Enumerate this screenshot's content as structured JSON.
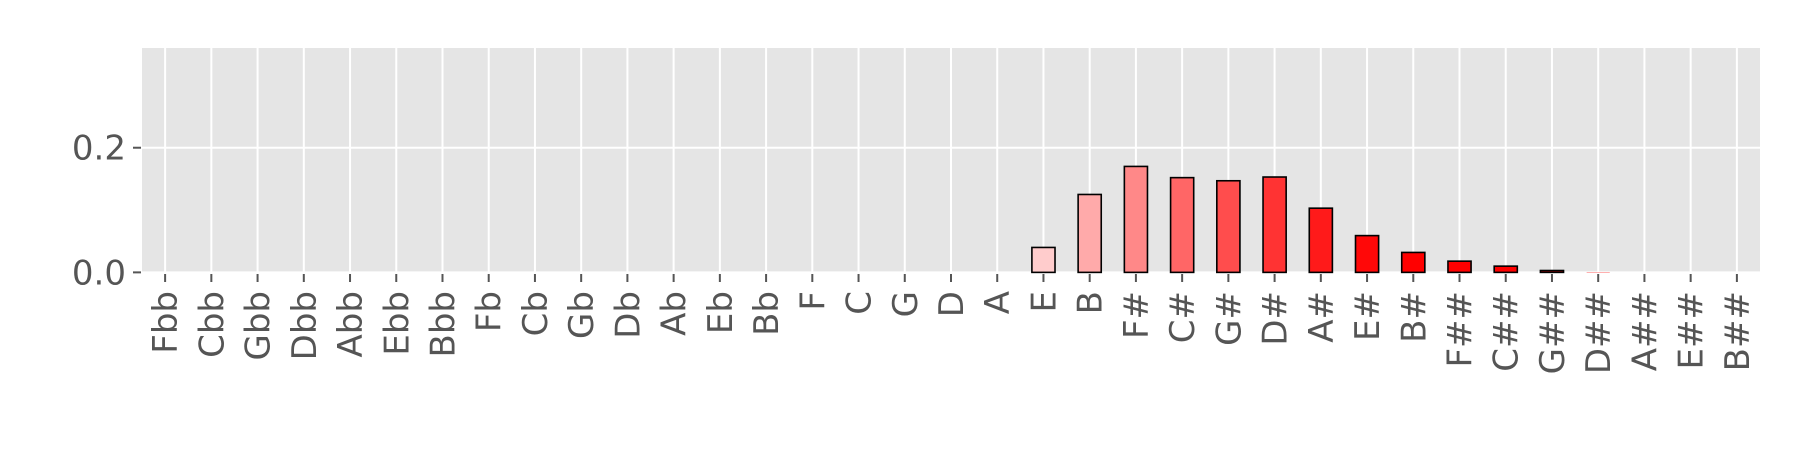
{
  "chart_data": {
    "type": "bar",
    "title": "",
    "xlabel": "",
    "ylabel": "",
    "categories": [
      "Fbb",
      "Cbb",
      "Gbb",
      "Dbb",
      "Abb",
      "Ebb",
      "Bbb",
      "Fb",
      "Cb",
      "Gb",
      "Db",
      "Ab",
      "Eb",
      "Bb",
      "F",
      "C",
      "G",
      "D",
      "A",
      "E",
      "B",
      "F#",
      "C#",
      "G#",
      "D#",
      "A#",
      "E#",
      "B#",
      "F##",
      "C##",
      "G##",
      "D##",
      "A##",
      "E##",
      "B##"
    ],
    "values": [
      0,
      0,
      0,
      0,
      0,
      0,
      0,
      0,
      0,
      0,
      0,
      0,
      0,
      0,
      0,
      0,
      0,
      0,
      0,
      0.04,
      0.125,
      0.17,
      0.152,
      0.147,
      0.153,
      0.103,
      0.059,
      0.032,
      0.018,
      0.01,
      0.003,
      0.0005,
      0,
      0,
      0
    ],
    "bar_colors": [
      "#ffffff",
      "#ffffff",
      "#ffffff",
      "#ffffff",
      "#ffffff",
      "#ffffff",
      "#ffffff",
      "#ffffff",
      "#ffffff",
      "#ffffff",
      "#ffffff",
      "#ffffff",
      "#ffffff",
      "#ffffff",
      "#ffffff",
      "#ffffff",
      "#ffffff",
      "#ffffff",
      "#ffffff",
      "#ffcccc",
      "#ffaaaa",
      "#ff8888",
      "#ff6666",
      "#ff4d4d",
      "#ff3333",
      "#ff1a1a",
      "#ff0808",
      "#ff0000",
      "#ff0000",
      "#ff0000",
      "#ff0000",
      "#ff0000",
      "#ff0000",
      "#ff0000",
      "#ff0000"
    ],
    "ylim": [
      -0.001,
      0.36
    ],
    "yticks": [
      0.0,
      0.2
    ],
    "ytick_labels": [
      "0.0",
      "0.2"
    ],
    "grid": true,
    "background_color": "#e5e5e5",
    "grid_color": "#ffffff",
    "bar_edge_color": "#000000",
    "tick_color": "#555555"
  }
}
